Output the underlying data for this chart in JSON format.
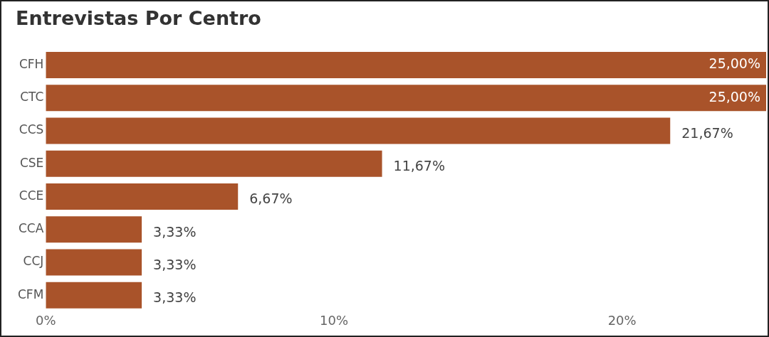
{
  "chart_data": {
    "type": "bar",
    "orientation": "horizontal",
    "title": "Entrevistas Por Centro",
    "categories": [
      "CFH",
      "CTC",
      "CCS",
      "CSE",
      "CCE",
      "CCA",
      "CCJ",
      "CFM"
    ],
    "values": [
      25,
      25,
      21.67,
      11.67,
      6.67,
      3.33,
      3.33,
      3.33
    ],
    "value_labels": [
      "25,00%",
      "25,00%",
      "21,67%",
      "11,67%",
      "6,67%",
      "3,33%",
      "3,33%",
      "3,33%"
    ],
    "color": "#a9532a",
    "xlim": [
      0,
      25
    ],
    "xticks": [
      {
        "value": 0,
        "label": "0%"
      },
      {
        "value": 10,
        "label": "10%"
      },
      {
        "value": 20,
        "label": "20%"
      }
    ],
    "grid": false,
    "legend": false
  }
}
